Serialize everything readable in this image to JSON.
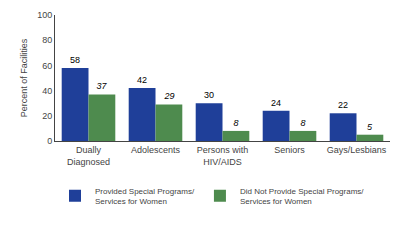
{
  "chart_data": {
    "type": "bar",
    "categories": [
      "Dually\nDiagnosed",
      "Adolescents",
      "Persons with\nHIV/AIDS",
      "Seniors",
      "Gays/Lesbians"
    ],
    "series": [
      {
        "name": "Provided Special Programs/\nServices for Women",
        "color": "#1F3F99",
        "values": [
          58,
          42,
          30,
          24,
          22
        ]
      },
      {
        "name": "Did Not Provide Special Programs/\nServices for Women",
        "color": "#4E8B4E",
        "values": [
          37,
          29,
          8,
          8,
          5
        ]
      }
    ],
    "ylabel": "Percent of Facilities",
    "ylim": [
      0,
      100
    ],
    "yticks": [
      0,
      20,
      40,
      60,
      80,
      100
    ],
    "grid": false,
    "legend": "bottom",
    "data_labels": true
  }
}
